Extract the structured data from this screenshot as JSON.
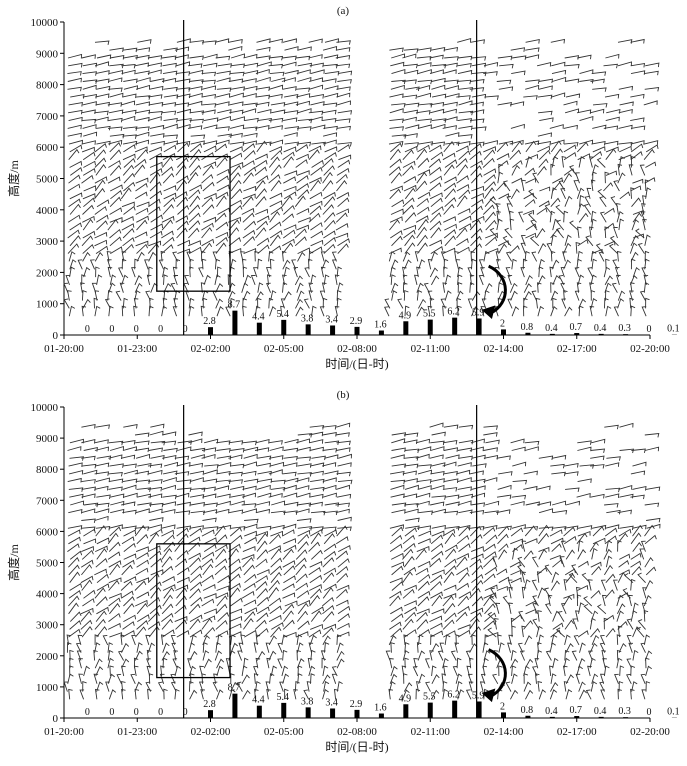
{
  "chart_data": [
    {
      "type": "wind_profile",
      "panel_label": "(a)",
      "ylabel": "高度/m",
      "xlabel": "时间/(日-时)",
      "ylim": [
        0,
        10000
      ],
      "yticks": [
        0,
        1000,
        2000,
        3000,
        4000,
        5000,
        6000,
        7000,
        8000,
        9000,
        10000
      ],
      "xticks": [
        "01-20:00",
        "01-23:00",
        "02-02:00",
        "02-05:00",
        "02-08:00",
        "02-11:00",
        "02-14:00",
        "02-17:00",
        "02-20:00"
      ],
      "precip_times": [
        "01-20:00",
        "01-21:00",
        "01-22:00",
        "01-23:00",
        "02-00:00",
        "02-01:00",
        "02-02:00",
        "02-03:00",
        "02-04:00",
        "02-05:00",
        "02-06:00",
        "02-07:00",
        "02-08:00",
        "02-09:00",
        "02-10:00",
        "02-11:00",
        "02-12:00",
        "02-13:00",
        "02-14:00",
        "02-15:00",
        "02-16:00",
        "02-17:00",
        "02-18:00",
        "02-19:00",
        "02-20:00"
      ],
      "precip_values": [
        0,
        0,
        0,
        0,
        0,
        2.8,
        8.7,
        4.4,
        5.4,
        3.8,
        3.4,
        2.9,
        1.6,
        4.9,
        5.5,
        6.2,
        5.9,
        2,
        0.8,
        0.4,
        0.7,
        0.4,
        0.3,
        0,
        0.1
      ],
      "vertical_line_times": [
        "02-00:54",
        "02-12:54"
      ],
      "box": {
        "time_start": "01-23:48",
        "time_end": "02-02:48",
        "height_bottom": 1400,
        "height_top": 5700
      },
      "grid": false
    },
    {
      "type": "wind_profile",
      "panel_label": "(b)",
      "ylabel": "高度/m",
      "xlabel": "时间/(日-时)",
      "ylim": [
        0,
        10000
      ],
      "yticks": [
        0,
        1000,
        2000,
        3000,
        4000,
        5000,
        6000,
        7000,
        8000,
        9000,
        10000
      ],
      "xticks": [
        "01-20:00",
        "01-23:00",
        "02-02:00",
        "02-05:00",
        "02-08:00",
        "02-11:00",
        "02-14:00",
        "02-17:00",
        "02-20:00"
      ],
      "precip_times": [
        "01-20:00",
        "01-21:00",
        "01-22:00",
        "01-23:00",
        "02-00:00",
        "02-01:00",
        "02-02:00",
        "02-03:00",
        "02-04:00",
        "02-05:00",
        "02-06:00",
        "02-07:00",
        "02-08:00",
        "02-09:00",
        "02-10:00",
        "02-11:00",
        "02-12:00",
        "02-13:00",
        "02-14:00",
        "02-15:00",
        "02-16:00",
        "02-17:00",
        "02-18:00",
        "02-19:00",
        "02-20:00"
      ],
      "precip_values": [
        0,
        0,
        0,
        0,
        0,
        2.8,
        8.7,
        4.4,
        5.4,
        3.8,
        3.4,
        2.9,
        1.6,
        4.9,
        5.5,
        6.2,
        5.9,
        2,
        0.8,
        0.4,
        0.7,
        0.4,
        0.3,
        0,
        0.1
      ],
      "vertical_line_times": [
        "02-00:54",
        "02-12:54"
      ],
      "box": {
        "time_start": "01-23:48",
        "time_end": "02-02:48",
        "height_bottom": 1300,
        "height_top": 5600
      },
      "grid": false
    }
  ]
}
